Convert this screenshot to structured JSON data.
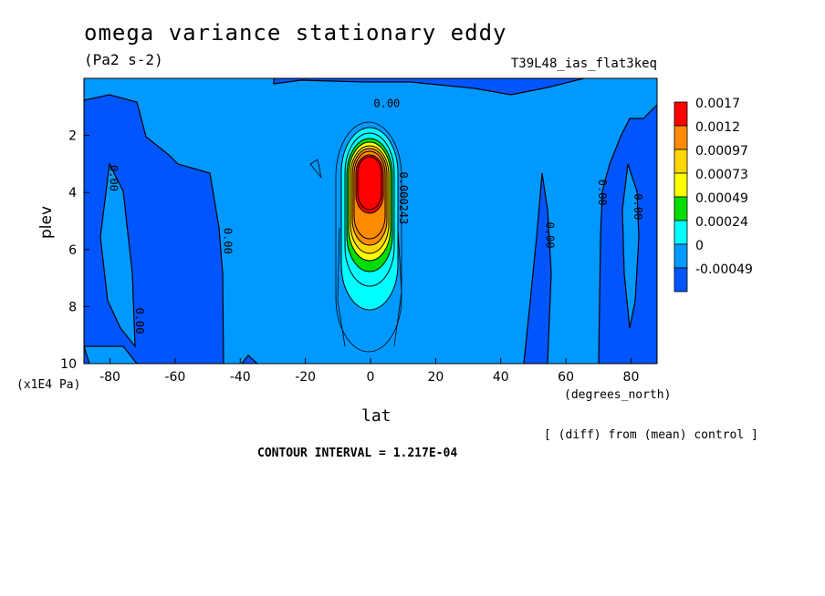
{
  "chart_data": {
    "type": "heatmap",
    "title": "omega variance stationary eddy",
    "units": "(Pa2 s-2)",
    "experiment": "T39L48_ias_flat3keq",
    "xlabel": "lat",
    "ylabel": "plev",
    "x_units": "(degrees_north)",
    "y_units": "(x1E4 Pa)",
    "xlim": [
      -88,
      88
    ],
    "ylim": [
      10,
      0
    ],
    "x_ticks": [
      -80,
      -60,
      -40,
      -20,
      0,
      20,
      40,
      60,
      80
    ],
    "y_ticks": [
      2,
      4,
      6,
      8,
      10
    ],
    "note": "[ (diff) from (mean) control ]",
    "contour_interval": "CONTOUR INTERVAL = 1.217E-04",
    "colorbar": {
      "labels": [
        "0.0017",
        "0.0012",
        "0.00097",
        "0.00073",
        "0.00049",
        "0.00024",
        "0",
        "-0.00049"
      ],
      "colors": [
        "#ff0000",
        "#ff8c00",
        "#ffd700",
        "#ffff00",
        "#00dd00",
        "#00ffff",
        "#0099ff",
        "#0055ff"
      ]
    },
    "contour_labels": [
      {
        "lat": -80,
        "plev": 3.5,
        "text": "0.00"
      },
      {
        "lat": -45,
        "plev": 5.7,
        "text": "0.00"
      },
      {
        "lat": -72,
        "plev": 8.5,
        "text": "0.00"
      },
      {
        "lat": 5,
        "plev": 1.0,
        "text": "0.00"
      },
      {
        "lat": 9,
        "plev": 4.2,
        "text": "0.000243"
      },
      {
        "lat": 54,
        "plev": 5.5,
        "text": "0.00"
      },
      {
        "lat": 70,
        "plev": 4.0,
        "text": "0.00"
      },
      {
        "lat": 81,
        "plev": 4.5,
        "text": "0.00"
      }
    ],
    "features": [
      {
        "name": "equatorial maximum",
        "lat": 0,
        "plev": 4.0,
        "value": 0.0017
      },
      {
        "name": "positive region extent",
        "lat": [
          -10,
          10
        ],
        "plev": [
          1.3,
          8.2
        ],
        "value": 0.00024
      }
    ]
  }
}
